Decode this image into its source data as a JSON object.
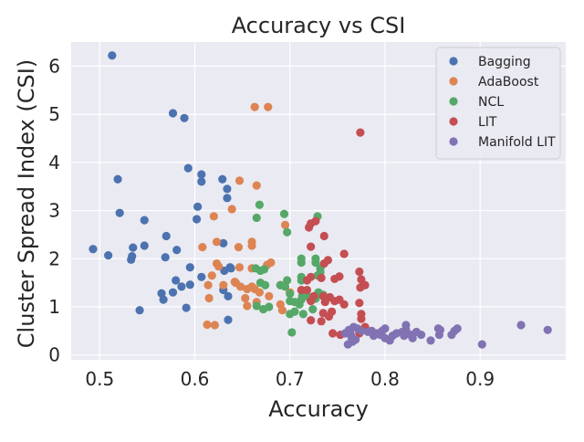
{
  "chart_data": {
    "type": "scatter",
    "title": "Accuracy vs CSI",
    "xlabel": "Accuracy",
    "ylabel": "Cluster Spread Index (CSI)",
    "xlim": [
      0.47,
      0.99
    ],
    "ylim": [
      -0.1,
      6.5
    ],
    "xticks": [
      0.5,
      0.6,
      0.7,
      0.8,
      0.9
    ],
    "xtick_labels": [
      "0.5",
      "0.6",
      "0.7",
      "0.8",
      "0.9"
    ],
    "yticks": [
      0,
      1,
      2,
      3,
      4,
      5,
      6
    ],
    "ytick_labels": [
      "0",
      "1",
      "2",
      "3",
      "4",
      "5",
      "6"
    ],
    "grid": true,
    "legend_position": "top-right",
    "series": [
      {
        "name": "Bagging",
        "color": "#4c72b0",
        "points": [
          [
            0.513,
            6.22
          ],
          [
            0.577,
            5.02
          ],
          [
            0.589,
            4.92
          ],
          [
            0.593,
            3.88
          ],
          [
            0.607,
            3.75
          ],
          [
            0.607,
            3.6
          ],
          [
            0.519,
            3.65
          ],
          [
            0.629,
            3.65
          ],
          [
            0.634,
            3.45
          ],
          [
            0.634,
            3.26
          ],
          [
            0.603,
            3.08
          ],
          [
            0.521,
            2.95
          ],
          [
            0.547,
            2.8
          ],
          [
            0.602,
            2.82
          ],
          [
            0.57,
            2.47
          ],
          [
            0.493,
            2.2
          ],
          [
            0.535,
            2.23
          ],
          [
            0.547,
            2.27
          ],
          [
            0.581,
            2.18
          ],
          [
            0.63,
            2.32
          ],
          [
            0.509,
            2.07
          ],
          [
            0.534,
            2.05
          ],
          [
            0.533,
            1.98
          ],
          [
            0.569,
            2.03
          ],
          [
            0.637,
            1.82
          ],
          [
            0.595,
            1.82
          ],
          [
            0.631,
            1.75
          ],
          [
            0.638,
            1.8
          ],
          [
            0.607,
            1.62
          ],
          [
            0.58,
            1.55
          ],
          [
            0.595,
            1.46
          ],
          [
            0.586,
            1.42
          ],
          [
            0.565,
            1.28
          ],
          [
            0.577,
            1.3
          ],
          [
            0.567,
            1.15
          ],
          [
            0.63,
            1.35
          ],
          [
            0.635,
            1.22
          ],
          [
            0.591,
            0.98
          ],
          [
            0.542,
            0.93
          ],
          [
            0.635,
            0.73
          ]
        ]
      },
      {
        "name": "AdaBoost",
        "color": "#dd8452",
        "points": [
          [
            0.663,
            5.15
          ],
          [
            0.677,
            5.15
          ],
          [
            0.647,
            3.62
          ],
          [
            0.665,
            3.52
          ],
          [
            0.639,
            3.03
          ],
          [
            0.62,
            2.88
          ],
          [
            0.695,
            2.7
          ],
          [
            0.623,
            2.35
          ],
          [
            0.608,
            2.24
          ],
          [
            0.646,
            2.24
          ],
          [
            0.66,
            2.35
          ],
          [
            0.66,
            2.27
          ],
          [
            0.623,
            1.9
          ],
          [
            0.625,
            1.84
          ],
          [
            0.647,
            1.82
          ],
          [
            0.66,
            1.8
          ],
          [
            0.676,
            1.87
          ],
          [
            0.68,
            1.92
          ],
          [
            0.618,
            1.65
          ],
          [
            0.643,
            1.5
          ],
          [
            0.614,
            1.45
          ],
          [
            0.63,
            1.45
          ],
          [
            0.648,
            1.42
          ],
          [
            0.655,
            1.37
          ],
          [
            0.66,
            1.42
          ],
          [
            0.663,
            1.37
          ],
          [
            0.668,
            1.3
          ],
          [
            0.678,
            1.22
          ],
          [
            0.653,
            1.18
          ],
          [
            0.615,
            1.18
          ],
          [
            0.665,
            1.1
          ],
          [
            0.655,
            1.02
          ],
          [
            0.69,
            1.05
          ],
          [
            0.692,
            0.93
          ],
          [
            0.613,
            0.63
          ],
          [
            0.621,
            0.62
          ],
          [
            0.69,
            1.45
          ],
          [
            0.642,
            1.52
          ],
          [
            0.66,
            1.8
          ],
          [
            0.7,
            1.3
          ]
        ]
      },
      {
        "name": "NCL",
        "color": "#55a868",
        "points": [
          [
            0.668,
            3.12
          ],
          [
            0.694,
            2.93
          ],
          [
            0.729,
            2.88
          ],
          [
            0.665,
            2.85
          ],
          [
            0.697,
            2.55
          ],
          [
            0.712,
            2.0
          ],
          [
            0.712,
            1.92
          ],
          [
            0.727,
            2.0
          ],
          [
            0.727,
            1.92
          ],
          [
            0.732,
            1.8
          ],
          [
            0.664,
            1.8
          ],
          [
            0.669,
            1.75
          ],
          [
            0.673,
            1.78
          ],
          [
            0.697,
            1.55
          ],
          [
            0.712,
            1.62
          ],
          [
            0.712,
            1.55
          ],
          [
            0.729,
            1.65
          ],
          [
            0.732,
            1.72
          ],
          [
            0.669,
            1.5
          ],
          [
            0.674,
            1.45
          ],
          [
            0.69,
            1.45
          ],
          [
            0.695,
            1.42
          ],
          [
            0.7,
            1.27
          ],
          [
            0.713,
            1.23
          ],
          [
            0.72,
            1.2
          ],
          [
            0.727,
            1.17
          ],
          [
            0.73,
            1.3
          ],
          [
            0.7,
            1.12
          ],
          [
            0.705,
            1.1
          ],
          [
            0.71,
            1.05
          ],
          [
            0.665,
            1.02
          ],
          [
            0.672,
            0.95
          ],
          [
            0.678,
            1.0
          ],
          [
            0.705,
            0.9
          ],
          [
            0.7,
            0.85
          ],
          [
            0.714,
            0.85
          ],
          [
            0.724,
            0.95
          ],
          [
            0.702,
            0.47
          ],
          [
            0.712,
            1.15
          ],
          [
            0.735,
            1.25
          ]
        ]
      },
      {
        "name": "LIT",
        "color": "#c44e52",
        "points": [
          [
            0.774,
            4.62
          ],
          [
            0.722,
            2.73
          ],
          [
            0.727,
            2.78
          ],
          [
            0.72,
            2.65
          ],
          [
            0.736,
            2.47
          ],
          [
            0.722,
            2.25
          ],
          [
            0.757,
            2.1
          ],
          [
            0.74,
            1.97
          ],
          [
            0.736,
            1.9
          ],
          [
            0.773,
            1.73
          ],
          [
            0.718,
            1.55
          ],
          [
            0.722,
            1.62
          ],
          [
            0.733,
            1.6
          ],
          [
            0.747,
            1.58
          ],
          [
            0.752,
            1.63
          ],
          [
            0.775,
            1.57
          ],
          [
            0.779,
            1.45
          ],
          [
            0.774,
            1.4
          ],
          [
            0.712,
            1.35
          ],
          [
            0.718,
            1.35
          ],
          [
            0.725,
            1.22
          ],
          [
            0.735,
            1.22
          ],
          [
            0.742,
            1.2
          ],
          [
            0.722,
            1.12
          ],
          [
            0.737,
            1.1
          ],
          [
            0.747,
            1.12
          ],
          [
            0.752,
            1.15
          ],
          [
            0.757,
            1.05
          ],
          [
            0.773,
            1.08
          ],
          [
            0.735,
            0.87
          ],
          [
            0.741,
            0.8
          ],
          [
            0.744,
            0.9
          ],
          [
            0.722,
            0.72
          ],
          [
            0.733,
            0.7
          ],
          [
            0.775,
            0.75
          ],
          [
            0.779,
            0.58
          ],
          [
            0.745,
            0.45
          ],
          [
            0.753,
            0.42
          ],
          [
            0.773,
            0.45
          ],
          [
            0.775,
            0.85
          ]
        ]
      },
      {
        "name": "Manifold LIT",
        "color": "#8172b3",
        "points": [
          [
            0.943,
            0.62
          ],
          [
            0.971,
            0.52
          ],
          [
            0.902,
            0.22
          ],
          [
            0.856,
            0.55
          ],
          [
            0.858,
            0.52
          ],
          [
            0.857,
            0.42
          ],
          [
            0.873,
            0.5
          ],
          [
            0.876,
            0.55
          ],
          [
            0.87,
            0.42
          ],
          [
            0.848,
            0.3
          ],
          [
            0.822,
            0.62
          ],
          [
            0.822,
            0.52
          ],
          [
            0.818,
            0.48
          ],
          [
            0.827,
            0.42
          ],
          [
            0.833,
            0.48
          ],
          [
            0.838,
            0.42
          ],
          [
            0.829,
            0.35
          ],
          [
            0.82,
            0.4
          ],
          [
            0.8,
            0.55
          ],
          [
            0.797,
            0.5
          ],
          [
            0.792,
            0.45
          ],
          [
            0.788,
            0.4
          ],
          [
            0.795,
            0.42
          ],
          [
            0.8,
            0.35
          ],
          [
            0.805,
            0.3
          ],
          [
            0.767,
            0.58
          ],
          [
            0.771,
            0.55
          ],
          [
            0.775,
            0.5
          ],
          [
            0.762,
            0.52
          ],
          [
            0.763,
            0.48
          ],
          [
            0.764,
            0.42
          ],
          [
            0.765,
            0.35
          ],
          [
            0.766,
            0.28
          ],
          [
            0.761,
            0.22
          ],
          [
            0.758,
            0.45
          ],
          [
            0.782,
            0.48
          ],
          [
            0.786,
            0.5
          ],
          [
            0.808,
            0.4
          ],
          [
            0.812,
            0.45
          ],
          [
            0.769,
            0.32
          ]
        ]
      }
    ]
  }
}
